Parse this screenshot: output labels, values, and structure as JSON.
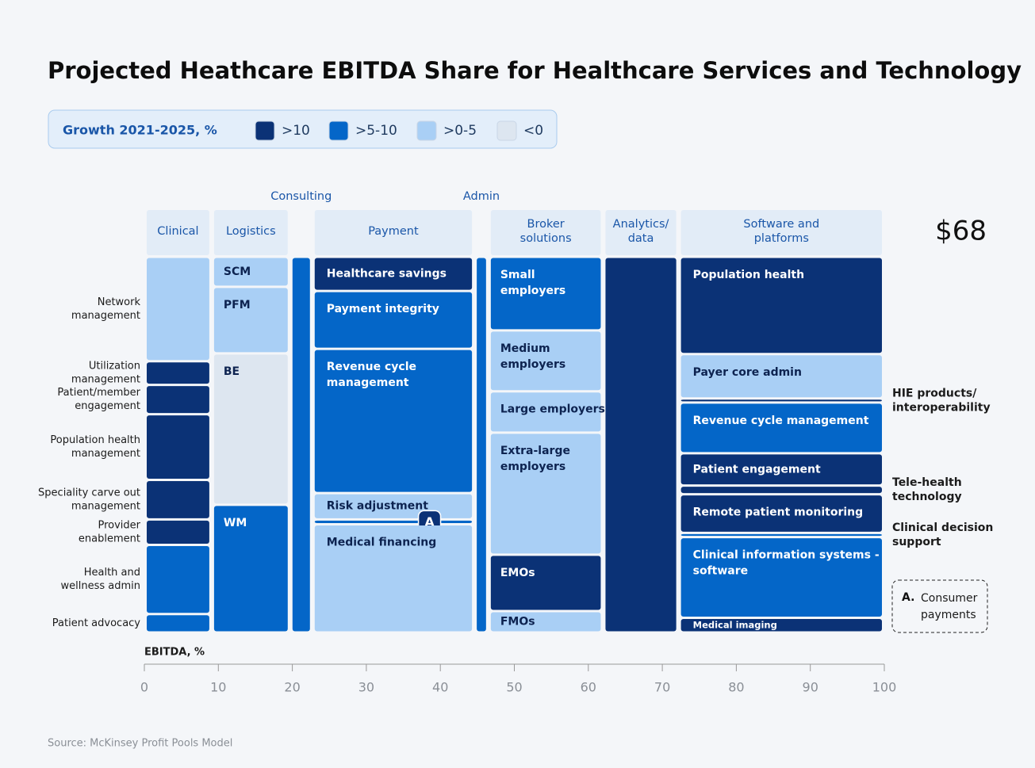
{
  "chart_data": {
    "type": "marimekko",
    "title": "Projected Heathcare EBITDA Share for Healthcare Services and Technology",
    "legend": {
      "title": "Growth 2021-2025, %",
      "items": [
        {
          "name": ">10",
          "color": "#0b3276"
        },
        {
          "name": ">5-10",
          "color": "#0466c8"
        },
        {
          "name": ">0-5",
          "color": "#a9cff5"
        },
        {
          "name": "<0",
          "color": "#dde6f0"
        }
      ]
    },
    "total": "$68",
    "xlabel": "EBITDA, %",
    "xlim": [
      0,
      100
    ],
    "xticks": [
      0,
      10,
      20,
      30,
      40,
      50,
      60,
      70,
      80,
      90,
      100
    ],
    "columns": [
      {
        "name": [
          "Clinical"
        ],
        "width": 9.1,
        "labels": "left",
        "segments": [
          {
            "label": [
              "Network",
              "management"
            ],
            "value": 27.8,
            "color": "#a9cff5"
          },
          {
            "label": [
              "Utilization",
              "management"
            ],
            "value": 6.3,
            "color": "#0b3276"
          },
          {
            "label": [
              "Patient/member",
              "engagement"
            ],
            "value": 7.8,
            "color": "#0b3276"
          },
          {
            "label": [
              "Population health",
              "management"
            ],
            "value": 17.5,
            "color": "#0b3276"
          },
          {
            "label": [
              "Speciality carve out",
              "management"
            ],
            "value": 10.5,
            "color": "#0b3276"
          },
          {
            "label": [
              "Provider",
              "enablement"
            ],
            "value": 6.8,
            "color": "#0b3276"
          },
          {
            "label": [
              "Health and",
              "wellness admin"
            ],
            "value": 18.4,
            "color": "#0466c8"
          },
          {
            "label": [
              "Patient advocacy"
            ],
            "value": 4.9,
            "color": "#0466c8"
          }
        ]
      },
      {
        "name": [
          "Logistics"
        ],
        "width": 10.6,
        "segments": [
          {
            "label": [
              "SCM"
            ],
            "value": 8.0,
            "color": "#a9cff5"
          },
          {
            "label": [
              "PFM"
            ],
            "value": 17.7,
            "color": "#a9cff5"
          },
          {
            "label": [
              "BE"
            ],
            "value": 40.3,
            "color": "#dde6f0"
          },
          {
            "label": [
              "WM"
            ],
            "value": 34.0,
            "color": "#0466c8"
          }
        ]
      },
      {
        "name": [
          "Consulting"
        ],
        "width": 3.0,
        "segments": [
          {
            "value": 100,
            "color": "#0466c8"
          }
        ]
      },
      {
        "name": [
          "Payment"
        ],
        "width": 21.9,
        "segments": [
          {
            "label": [
              "Healthcare savings"
            ],
            "value": 9.1,
            "color": "#0b3276"
          },
          {
            "label": [
              "Payment integrity"
            ],
            "value": 15.4,
            "color": "#0466c8"
          },
          {
            "label": [
              "Revenue cycle",
              "management"
            ],
            "value": 38.4,
            "color": "#0466c8"
          },
          {
            "label": [
              "Risk adjustment"
            ],
            "value": 7.0,
            "color": "#a9cff5"
          },
          {
            "label": [
              "A"
            ],
            "value": 1.3,
            "color": "#0466c8"
          },
          {
            "label": [
              "Medical financing"
            ],
            "value": 28.8,
            "color": "#a9cff5"
          }
        ]
      },
      {
        "name": [
          "Admin"
        ],
        "width": 1.9,
        "segments": [
          {
            "value": 100,
            "color": "#0466c8"
          }
        ]
      },
      {
        "name": [
          "Broker",
          "solutions"
        ],
        "width": 15.5,
        "segments": [
          {
            "label": [
              "Small",
              "employers"
            ],
            "value": 19.6,
            "color": "#0466c8"
          },
          {
            "label": [
              "Medium",
              "employers"
            ],
            "value": 16.2,
            "color": "#a9cff5"
          },
          {
            "label": [
              "Large employers"
            ],
            "value": 11.0,
            "color": "#a9cff5"
          },
          {
            "label": [
              "Extra-large",
              "employers"
            ],
            "value": 32.5,
            "color": "#a9cff5"
          },
          {
            "label": [
              "EMOs"
            ],
            "value": 15.0,
            "color": "#0b3276"
          },
          {
            "label": [
              "FMOs"
            ],
            "value": 5.7,
            "color": "#a9cff5"
          }
        ]
      },
      {
        "name": [
          "Analytics/",
          "data"
        ],
        "width": 10.2,
        "segments": [
          {
            "value": 100,
            "color": "#0b3276"
          }
        ]
      },
      {
        "name": [
          "Software and",
          "platforms"
        ],
        "width": 27.8,
        "segments": [
          {
            "label": [
              "Population health"
            ],
            "value": 25.9,
            "color": "#0b3276"
          },
          {
            "label": [
              "Payer core admin"
            ],
            "value": 11.8,
            "color": "#a9cff5"
          },
          {
            "label": [
              "HIE products/",
              "interoperability"
            ],
            "value": 1.1,
            "color": "#0b3276"
          },
          {
            "label": [
              "Revenue cycle management"
            ],
            "value": 13.5,
            "color": "#0466c8"
          },
          {
            "label": [
              "Patient engagement"
            ],
            "value": 8.6,
            "color": "#0b3276"
          },
          {
            "label": [
              "Tele-health",
              "technology"
            ],
            "value": 2.3,
            "color": "#0b3276"
          },
          {
            "label": [
              "Remote patient monitoring"
            ],
            "value": 10.3,
            "color": "#0b3276"
          },
          {
            "label": [
              "Clinical decision",
              "support"
            ],
            "value": 1.1,
            "color": "#0466c8"
          },
          {
            "label": [
              "Clinical information systems -",
              "software"
            ],
            "value": 21.5,
            "color": "#0466c8"
          },
          {
            "label": [
              "Medical imaging"
            ],
            "value": 3.9,
            "color": "#0b3276"
          }
        ]
      }
    ],
    "annotation": {
      "key": "A.",
      "text": [
        "Consumer",
        "payments"
      ]
    },
    "source": "Source: McKinsey Profit Pools Model"
  }
}
